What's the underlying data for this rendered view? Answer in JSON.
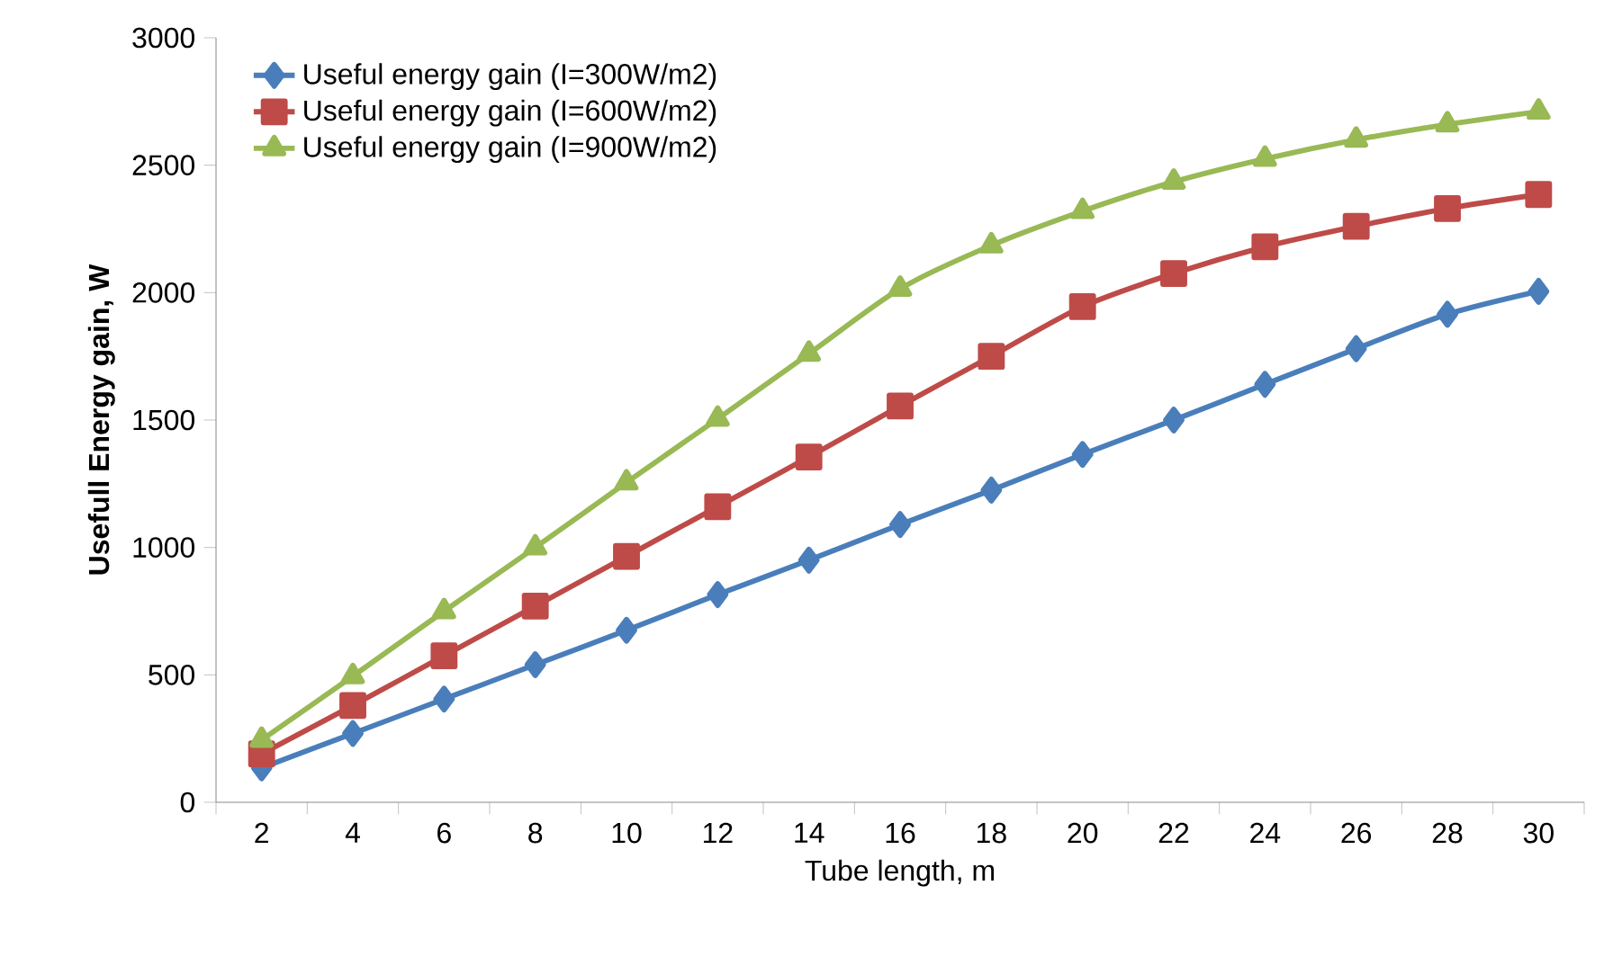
{
  "chart_data": {
    "type": "line",
    "xlabel": "Tube length, m",
    "ylabel": "Usefull Energy gain, W",
    "categories": [
      "2",
      "4",
      "6",
      "8",
      "10",
      "12",
      "14",
      "16",
      "18",
      "20",
      "22",
      "24",
      "26",
      "28",
      "30"
    ],
    "series": [
      {
        "name": "Useful energy gain (I=300W/m2)",
        "color": "#4a7ebb",
        "marker": "diamond",
        "values": [
          135,
          270,
          405,
          540,
          675,
          815,
          950,
          1090,
          1225,
          1365,
          1500,
          1640,
          1780,
          1915,
          2005
        ]
      },
      {
        "name": "Useful energy gain (I=600W/m2)",
        "color": "#be4b48",
        "marker": "square",
        "values": [
          190,
          380,
          575,
          770,
          965,
          1160,
          1355,
          1555,
          1750,
          1945,
          2075,
          2180,
          2260,
          2330,
          2385
        ]
      },
      {
        "name": "Useful energy gain (I=900W/m2)",
        "color": "#98b954",
        "marker": "triangle",
        "values": [
          245,
          495,
          750,
          1000,
          1255,
          1505,
          1760,
          2015,
          2185,
          2320,
          2435,
          2525,
          2600,
          2660,
          2710
        ]
      }
    ],
    "ylim": [
      0,
      3000
    ],
    "yticks": [
      0,
      500,
      1000,
      1500,
      2000,
      2500,
      3000
    ],
    "grid": false,
    "legend": "top left",
    "line_style": "solid"
  }
}
